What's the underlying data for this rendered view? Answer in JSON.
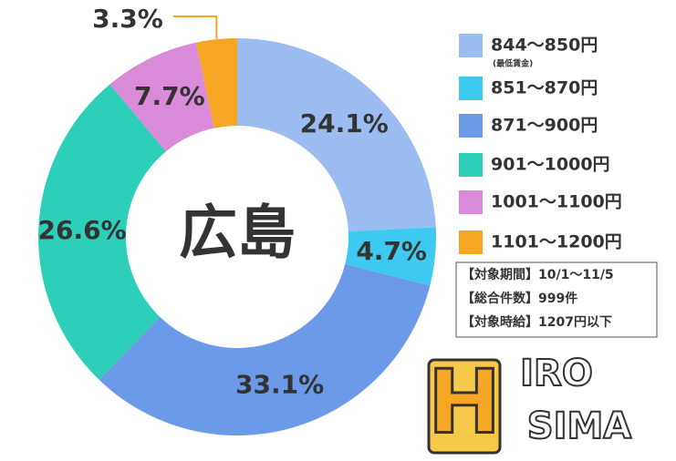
{
  "chart_data": {
    "type": "donut",
    "center_label": "広島",
    "categories": [
      "844～850円",
      "851～870円",
      "871～900円",
      "901～1000円",
      "1001～1100円",
      "1101～1200円"
    ],
    "legend_notes": [
      "(最低賃金)",
      null,
      null,
      null,
      null,
      null
    ],
    "values": [
      24.1,
      4.7,
      33.1,
      26.6,
      7.7,
      3.3
    ],
    "value_labels": [
      "24.1%",
      "4.7%",
      "33.1%",
      "26.6%",
      "7.7%",
      "3.3%"
    ],
    "colors": [
      "#9bbcf0",
      "#3ecaf0",
      "#6b9ae8",
      "#2ecfb8",
      "#d98ad8",
      "#f5a623"
    ]
  },
  "info_box": [
    "【対象期間】10/1～11/5",
    "【総合件数】999件",
    "【対象時給】1207円以下"
  ],
  "logo": {
    "big": "H",
    "top": "IRO",
    "bottom": "SIMA"
  }
}
